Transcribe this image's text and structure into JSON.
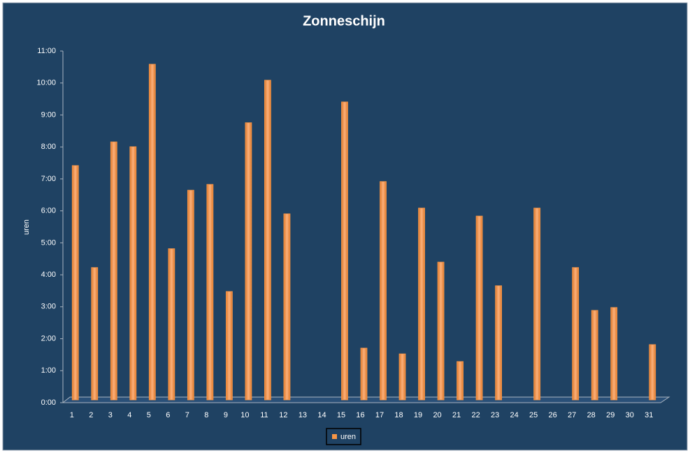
{
  "chart_data": {
    "type": "bar",
    "title": "Zonneschijn",
    "y_label": "uren",
    "categories": [
      "1",
      "2",
      "3",
      "4",
      "5",
      "6",
      "7",
      "8",
      "9",
      "10",
      "11",
      "12",
      "13",
      "14",
      "15",
      "16",
      "17",
      "18",
      "19",
      "20",
      "21",
      "22",
      "23",
      "24",
      "25",
      "26",
      "27",
      "28",
      "29",
      "30",
      "31"
    ],
    "series": [
      {
        "name": "uren",
        "color": "#f79646",
        "values": [
          7.33,
          4.14,
          8.07,
          7.92,
          10.5,
          4.73,
          6.56,
          6.74,
          3.39,
          8.67,
          10.0,
          5.82,
          0,
          0,
          9.32,
          1.62,
          6.83,
          1.44,
          6.0,
          4.31,
          1.2,
          5.75,
          3.57,
          0,
          6.0,
          0,
          4.14,
          2.8,
          2.89,
          0,
          1.73
        ]
      }
    ],
    "ylim": [
      0,
      11
    ],
    "yticks": [
      {
        "value": 0,
        "label": "0:00"
      },
      {
        "value": 1,
        "label": "1:00"
      },
      {
        "value": 2,
        "label": "2:00"
      },
      {
        "value": 3,
        "label": "3:00"
      },
      {
        "value": 4,
        "label": "4:00"
      },
      {
        "value": 5,
        "label": "5:00"
      },
      {
        "value": 6,
        "label": "6:00"
      },
      {
        "value": 7,
        "label": "7:00"
      },
      {
        "value": 8,
        "label": "8:00"
      },
      {
        "value": 9,
        "label": "9:00"
      },
      {
        "value": 10,
        "label": "10:00"
      },
      {
        "value": 11,
        "label": "11:00"
      }
    ],
    "grid": false,
    "legend": "bottom"
  }
}
